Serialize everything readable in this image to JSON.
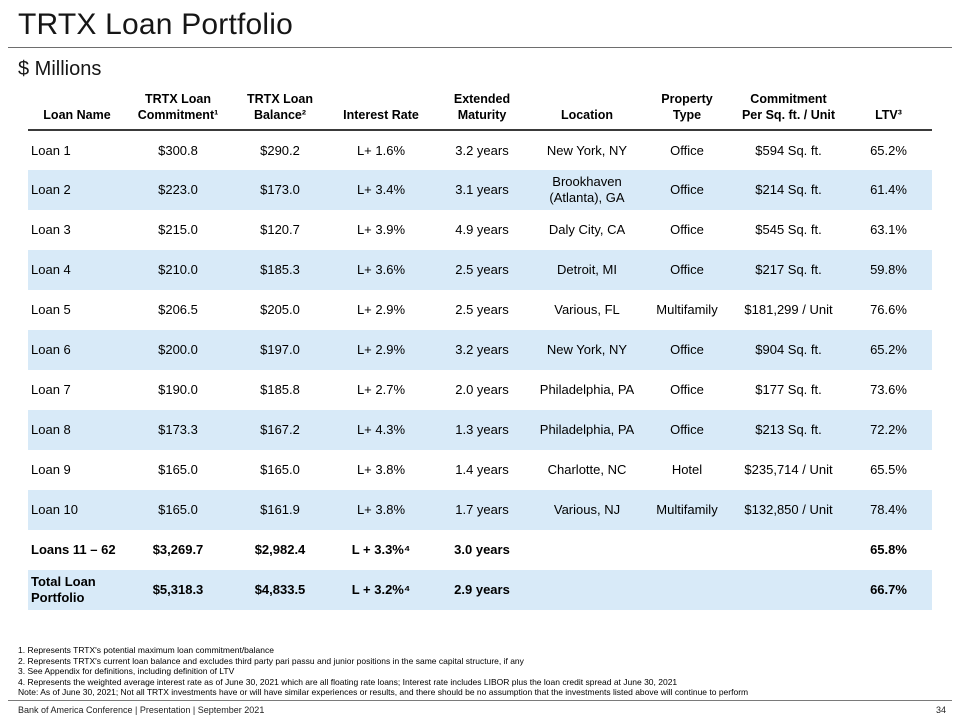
{
  "slide": {
    "title": "TRTX Loan Portfolio",
    "subtitle": "$ Millions"
  },
  "table": {
    "headers": [
      "Loan Name",
      "TRTX Loan\nCommitment¹",
      "TRTX Loan\nBalance²",
      "Interest Rate",
      "Extended\nMaturity",
      "Location",
      "Property\nType",
      "Commitment\nPer Sq. ft. / Unit",
      "LTV³"
    ],
    "rows": [
      {
        "cells": [
          "Loan 1",
          "$300.8",
          "$290.2",
          "L+ 1.6%",
          "3.2 years",
          "New York, NY",
          "Office",
          "$594 Sq. ft.",
          "65.2%"
        ],
        "shaded": false,
        "bold": false
      },
      {
        "cells": [
          "Loan 2",
          "$223.0",
          "$173.0",
          "L+ 3.4%",
          "3.1 years",
          "Brookhaven\n(Atlanta), GA",
          "Office",
          "$214 Sq. ft.",
          "61.4%"
        ],
        "shaded": true,
        "bold": false
      },
      {
        "cells": [
          "Loan 3",
          "$215.0",
          "$120.7",
          "L+ 3.9%",
          "4.9 years",
          "Daly City, CA",
          "Office",
          "$545 Sq. ft.",
          "63.1%"
        ],
        "shaded": false,
        "bold": false
      },
      {
        "cells": [
          "Loan 4",
          "$210.0",
          "$185.3",
          "L+ 3.6%",
          "2.5 years",
          "Detroit, MI",
          "Office",
          "$217 Sq. ft.",
          "59.8%"
        ],
        "shaded": true,
        "bold": false
      },
      {
        "cells": [
          "Loan 5",
          "$206.5",
          "$205.0",
          "L+ 2.9%",
          "2.5 years",
          "Various, FL",
          "Multifamily",
          "$181,299 / Unit",
          "76.6%"
        ],
        "shaded": false,
        "bold": false
      },
      {
        "cells": [
          "Loan 6",
          "$200.0",
          "$197.0",
          "L+ 2.9%",
          "3.2 years",
          "New York, NY",
          "Office",
          "$904 Sq. ft.",
          "65.2%"
        ],
        "shaded": true,
        "bold": false
      },
      {
        "cells": [
          "Loan 7",
          "$190.0",
          "$185.8",
          "L+ 2.7%",
          "2.0 years",
          "Philadelphia, PA",
          "Office",
          "$177 Sq. ft.",
          "73.6%"
        ],
        "shaded": false,
        "bold": false
      },
      {
        "cells": [
          "Loan 8",
          "$173.3",
          "$167.2",
          "L+ 4.3%",
          "1.3 years",
          "Philadelphia, PA",
          "Office",
          "$213 Sq. ft.",
          "72.2%"
        ],
        "shaded": true,
        "bold": false
      },
      {
        "cells": [
          "Loan 9",
          "$165.0",
          "$165.0",
          "L+ 3.8%",
          "1.4 years",
          "Charlotte, NC",
          "Hotel",
          "$235,714 / Unit",
          "65.5%"
        ],
        "shaded": false,
        "bold": false
      },
      {
        "cells": [
          "Loan 10",
          "$165.0",
          "$161.9",
          "L+ 3.8%",
          "1.7 years",
          "Various, NJ",
          "Multifamily",
          "$132,850 / Unit",
          "78.4%"
        ],
        "shaded": true,
        "bold": false
      },
      {
        "cells": [
          "Loans 11 – 62",
          "$3,269.7",
          "$2,982.4",
          "L + 3.3%⁴",
          "3.0 years",
          "",
          "",
          "",
          "65.8%"
        ],
        "shaded": false,
        "bold": true
      },
      {
        "cells": [
          "Total Loan\nPortfolio",
          "$5,318.3",
          "$4,833.5",
          "L + 3.2%⁴",
          "2.9 years",
          "",
          "",
          "",
          "66.7%"
        ],
        "shaded": true,
        "bold": true
      }
    ]
  },
  "footnotes": [
    "1. Represents TRTX's potential maximum loan commitment/balance",
    "2. Represents TRTX's current loan balance and excludes third party pari passu and junior positions in the same capital structure, if any",
    "3. See Appendix for definitions, including definition of LTV",
    "4. Represents the weighted average interest rate as of June 30, 2021 which are all floating rate loans; Interest rate includes LIBOR plus the loan credit spread at June 30, 2021",
    "Note: As of June 30, 2021; Not all TRTX investments have or will have similar experiences or results, and there should be no assumption that the investments listed above will continue to perform"
  ],
  "footer": {
    "left": "Bank of America Conference | Presentation | September 2021",
    "page": "34"
  }
}
